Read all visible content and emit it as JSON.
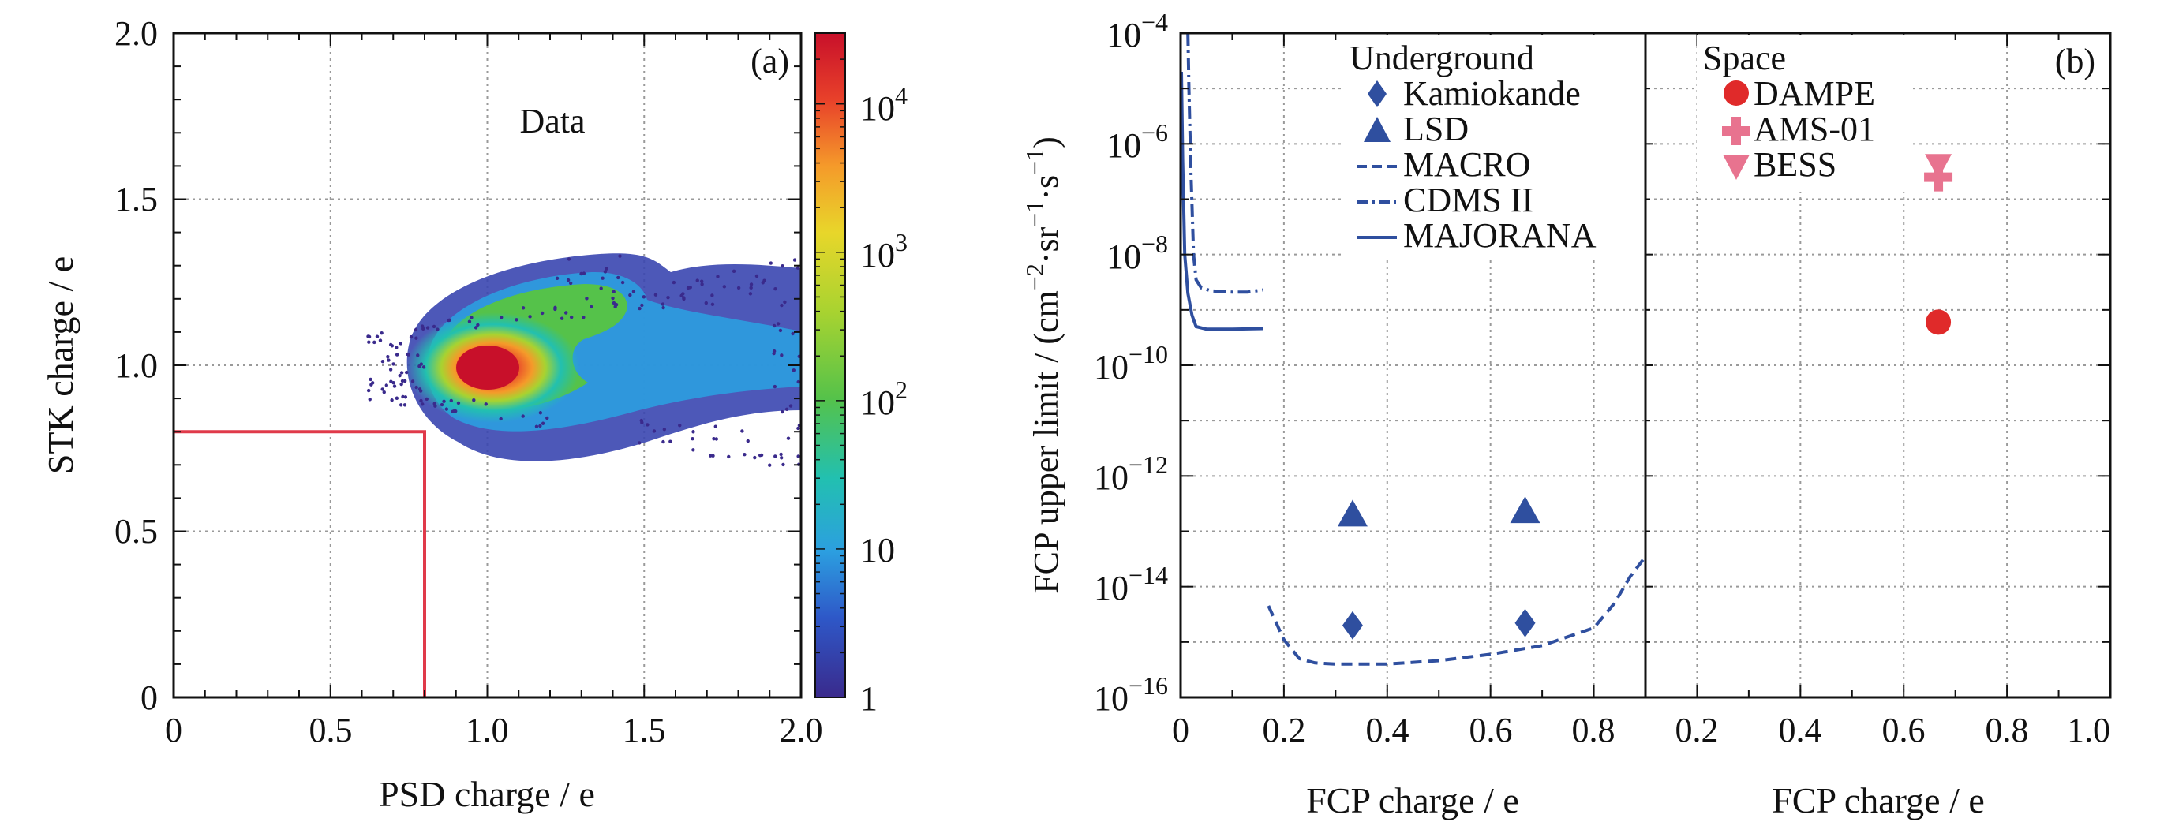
{
  "colors": {
    "axis": "#111111",
    "grid": "#9a9a9a",
    "marker_underground": "#2f4f9f",
    "dampe": "#e02a2a",
    "ams": "#e8738f",
    "cut_box": "#e03a4a",
    "colormap": [
      "#3a2a8c",
      "#2e58c8",
      "#2c9fe0",
      "#22c0b0",
      "#55c24a",
      "#a8d330",
      "#e8d62a",
      "#f59a2a",
      "#e8412a",
      "#c8102a"
    ]
  },
  "chart_data": [
    {
      "type": "heatmap",
      "panel_label": "(a)",
      "annotation": "Data",
      "xlabel": "PSD charge / e",
      "ylabel": "STK charge / e",
      "xlim": [
        0,
        2.0
      ],
      "ylim": [
        0,
        2.0
      ],
      "x_ticks": [
        "0",
        "0.5",
        "1.0",
        "1.5",
        "2.0"
      ],
      "y_ticks": [
        "0",
        "0.5",
        "1.0",
        "1.5",
        "2.0"
      ],
      "grid": true,
      "colorbar": {
        "scale": "log",
        "range": [
          1,
          30000
        ],
        "tick_values": [
          1,
          10,
          100,
          1000,
          10000
        ],
        "ticks": [
          {
            "base": "1",
            "exp": ""
          },
          {
            "base": "10",
            "exp": ""
          },
          {
            "base": "10",
            "exp": "2"
          },
          {
            "base": "10",
            "exp": "3"
          },
          {
            "base": "10",
            "exp": "4"
          }
        ]
      },
      "density_peak": {
        "x": 1.0,
        "y": 1.0,
        "counts": 20000
      },
      "selection_region": {
        "x_max": 0.8,
        "y_max": 0.8
      }
    },
    {
      "type": "scatter",
      "panel_label": "(b)",
      "ylabel_main": "FCP upper limit / (cm",
      "ylabel_sup1": "−2",
      "ylabel_mid": "·sr",
      "ylabel_sup2": "−1",
      "ylabel_mid2": "·s",
      "ylabel_sup3": "−1",
      "ylabel_end": ")",
      "y_scale": "log",
      "ylim": [
        1e-16,
        0.0001
      ],
      "y_ticks": [
        {
          "value": -16,
          "base": "10",
          "exp": "−16"
        },
        {
          "value": -14,
          "base": "10",
          "exp": "−14"
        },
        {
          "value": -12,
          "base": "10",
          "exp": "−12"
        },
        {
          "value": -10,
          "base": "10",
          "exp": "−10"
        },
        {
          "value": -8,
          "base": "10",
          "exp": "−8"
        },
        {
          "value": -6,
          "base": "10",
          "exp": "−6"
        },
        {
          "value": -4,
          "base": "10",
          "exp": "−4"
        }
      ],
      "grid": true,
      "subpanels": [
        {
          "group": "Underground",
          "xlabel": "FCP charge / e",
          "xlim": [
            0,
            0.9
          ],
          "x_ticks": [
            "0",
            "0.2",
            "0.4",
            "0.6",
            "0.8"
          ],
          "series": [
            {
              "name": "Kamiokande",
              "marker": "diamond",
              "points": [
                [
                  0.333,
                  2e-15
                ],
                [
                  0.667,
                  2.2e-15
                ]
              ]
            },
            {
              "name": "LSD",
              "marker": "triangle-up",
              "points": [
                [
                  0.333,
                  2e-13
                ],
                [
                  0.667,
                  2.3e-13
                ]
              ]
            },
            {
              "name": "MACRO",
              "line": "dashed",
              "points": [
                [
                  0.17,
                  4.5e-15
                ],
                [
                  0.2,
                  1.1e-15
                ],
                [
                  0.23,
                  5e-16
                ],
                [
                  0.26,
                  4.2e-16
                ],
                [
                  0.3,
                  4e-16
                ],
                [
                  0.4,
                  4e-16
                ],
                [
                  0.5,
                  4.6e-16
                ],
                [
                  0.6,
                  6e-16
                ],
                [
                  0.7,
                  8.6e-16
                ],
                [
                  0.8,
                  1.8e-15
                ],
                [
                  0.84,
                  5e-15
                ],
                [
                  0.87,
                  1.5e-14
                ],
                [
                  0.9,
                  3.5e-14
                ]
              ]
            },
            {
              "name": "CDMS II",
              "line": "dash-dot",
              "points": [
                [
                  0.014,
                  0.0001
                ],
                [
                  0.016,
                  1e-05
                ],
                [
                  0.02,
                  3e-07
                ],
                [
                  0.025,
                  1e-08
                ],
                [
                  0.03,
                  3.5e-09
                ],
                [
                  0.04,
                  2.5e-09
                ],
                [
                  0.06,
                  2.2e-09
                ],
                [
                  0.1,
                  2.1e-09
                ],
                [
                  0.13,
                  2.1e-09
                ],
                [
                  0.16,
                  2.3e-09
                ]
              ]
            },
            {
              "name": "MAJORANA",
              "line": "solid",
              "points": [
                [
                  0.0015,
                  2e-05
                ],
                [
                  0.004,
                  5e-07
                ],
                [
                  0.008,
                  1e-08
                ],
                [
                  0.014,
                  2e-09
                ],
                [
                  0.022,
                  8e-10
                ],
                [
                  0.03,
                  5e-10
                ],
                [
                  0.05,
                  4.5e-10
                ],
                [
                  0.1,
                  4.5e-10
                ],
                [
                  0.16,
                  4.6e-10
                ]
              ]
            }
          ]
        },
        {
          "group": "Space",
          "xlabel": "FCP charge / e",
          "xlim": [
            0.1,
            1.0
          ],
          "x_ticks": [
            "0.2",
            "0.4",
            "0.6",
            "0.8",
            "1.0"
          ],
          "series": [
            {
              "name": "DAMPE",
              "marker": "circle",
              "points": [
                [
                  0.667,
                  6e-10
                ]
              ]
            },
            {
              "name": "AMS-01",
              "marker": "cross",
              "points": [
                [
                  0.667,
                  2.5e-07
                ]
              ]
            },
            {
              "name": "BESS",
              "marker": "triangle-down",
              "points": [
                [
                  0.667,
                  4e-07
                ]
              ]
            }
          ]
        }
      ]
    }
  ]
}
